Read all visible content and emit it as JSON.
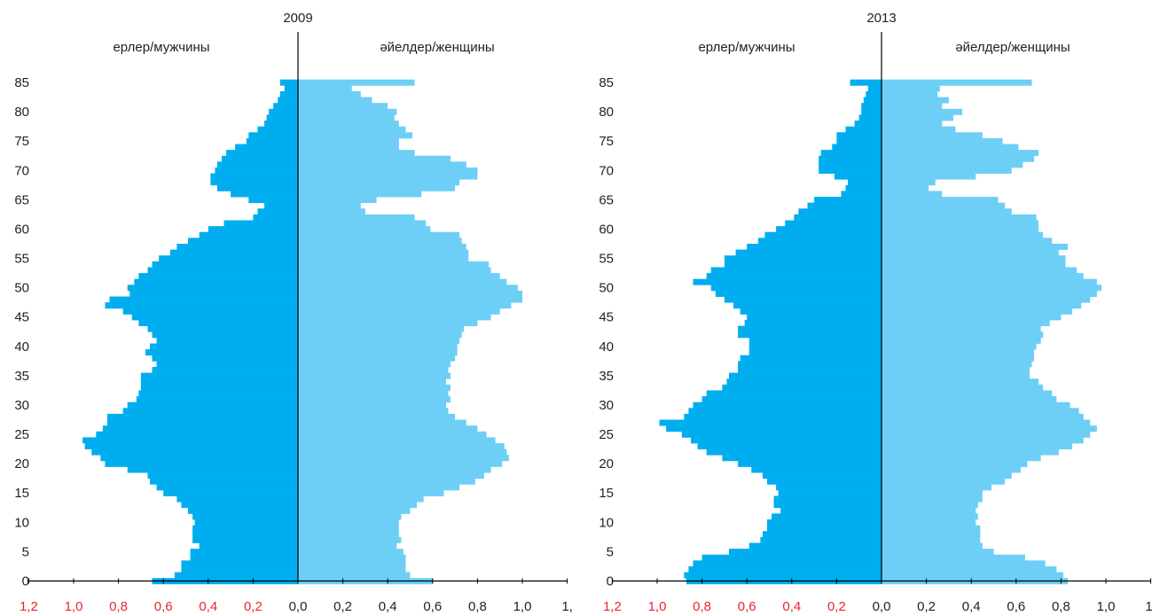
{
  "colors": {
    "male": "#00aeef",
    "female": "#6dcff6",
    "axis": "#000000",
    "left_tick_labels": "#e8272c",
    "right_tick_labels": "#231f20"
  },
  "chart_data": [
    {
      "type": "bar",
      "orientation": "horizontal-population-pyramid",
      "title": "2009",
      "series": [
        {
          "name": "ерлер/мужчины",
          "side": "left",
          "values": [
            0.65,
            0.55,
            0.52,
            0.52,
            0.48,
            0.48,
            0.44,
            0.47,
            0.47,
            0.47,
            0.46,
            0.47,
            0.49,
            0.52,
            0.54,
            0.6,
            0.63,
            0.66,
            0.67,
            0.76,
            0.86,
            0.88,
            0.92,
            0.95,
            0.96,
            0.9,
            0.87,
            0.85,
            0.85,
            0.78,
            0.76,
            0.72,
            0.71,
            0.7,
            0.7,
            0.7,
            0.65,
            0.63,
            0.65,
            0.68,
            0.66,
            0.63,
            0.65,
            0.67,
            0.71,
            0.74,
            0.78,
            0.86,
            0.84,
            0.75,
            0.76,
            0.73,
            0.71,
            0.67,
            0.65,
            0.62,
            0.57,
            0.54,
            0.49,
            0.44,
            0.4,
            0.33,
            0.2,
            0.18,
            0.15,
            0.22,
            0.3,
            0.36,
            0.39,
            0.39,
            0.37,
            0.36,
            0.34,
            0.32,
            0.28,
            0.23,
            0.22,
            0.18,
            0.15,
            0.14,
            0.13,
            0.11,
            0.09,
            0.08,
            0.06,
            0.08
          ]
        },
        {
          "name": "әйелдер/женщины",
          "side": "right",
          "values": [
            0.6,
            0.5,
            0.48,
            0.48,
            0.48,
            0.47,
            0.44,
            0.46,
            0.45,
            0.45,
            0.45,
            0.46,
            0.5,
            0.53,
            0.56,
            0.65,
            0.72,
            0.79,
            0.83,
            0.86,
            0.91,
            0.94,
            0.93,
            0.92,
            0.88,
            0.84,
            0.8,
            0.75,
            0.7,
            0.67,
            0.66,
            0.68,
            0.67,
            0.68,
            0.66,
            0.68,
            0.67,
            0.68,
            0.7,
            0.71,
            0.71,
            0.72,
            0.73,
            0.74,
            0.8,
            0.86,
            0.9,
            0.95,
            1.0,
            1.0,
            0.98,
            0.93,
            0.9,
            0.86,
            0.85,
            0.76,
            0.76,
            0.75,
            0.73,
            0.72,
            0.59,
            0.57,
            0.52,
            0.3,
            0.28,
            0.35,
            0.55,
            0.7,
            0.72,
            0.8,
            0.8,
            0.75,
            0.68,
            0.52,
            0.45,
            0.45,
            0.51,
            0.48,
            0.45,
            0.43,
            0.44,
            0.4,
            0.33,
            0.28,
            0.24,
            0.52
          ]
        }
      ],
      "y": {
        "label": "",
        "min": 0,
        "max": 85,
        "ticks": [
          "0",
          "5",
          "10",
          "15",
          "20",
          "25",
          "30",
          "35",
          "40",
          "45",
          "50",
          "55",
          "60",
          "65",
          "70",
          "75",
          "80",
          "85"
        ]
      },
      "x_left_ticks": [
        "1,2",
        "1,0",
        "0,8",
        "0,6",
        "0,4",
        "0,2"
      ],
      "x_right_ticks": [
        "0,0",
        "0,2",
        "0,4",
        "0,6",
        "0,8",
        "1,0",
        "1,"
      ]
    },
    {
      "type": "bar",
      "orientation": "horizontal-population-pyramid",
      "title": "2013",
      "series": [
        {
          "name": "ерлер/мужчины",
          "side": "left",
          "values": [
            0.87,
            0.88,
            0.86,
            0.84,
            0.8,
            0.68,
            0.59,
            0.54,
            0.53,
            0.51,
            0.51,
            0.49,
            0.45,
            0.48,
            0.48,
            0.46,
            0.47,
            0.51,
            0.53,
            0.58,
            0.64,
            0.71,
            0.78,
            0.82,
            0.85,
            0.89,
            0.96,
            0.99,
            0.88,
            0.86,
            0.84,
            0.8,
            0.78,
            0.71,
            0.69,
            0.68,
            0.64,
            0.64,
            0.63,
            0.59,
            0.59,
            0.59,
            0.64,
            0.64,
            0.61,
            0.6,
            0.63,
            0.66,
            0.7,
            0.74,
            0.76,
            0.84,
            0.78,
            0.76,
            0.7,
            0.7,
            0.65,
            0.6,
            0.55,
            0.52,
            0.47,
            0.43,
            0.39,
            0.37,
            0.33,
            0.3,
            0.18,
            0.16,
            0.15,
            0.21,
            0.28,
            0.28,
            0.28,
            0.27,
            0.22,
            0.2,
            0.2,
            0.16,
            0.12,
            0.1,
            0.09,
            0.09,
            0.08,
            0.07,
            0.06,
            0.14
          ]
        },
        {
          "name": "әйелдер/женщины",
          "side": "right",
          "values": [
            0.83,
            0.81,
            0.78,
            0.73,
            0.64,
            0.5,
            0.45,
            0.44,
            0.44,
            0.44,
            0.42,
            0.43,
            0.42,
            0.43,
            0.45,
            0.45,
            0.49,
            0.55,
            0.58,
            0.62,
            0.65,
            0.71,
            0.79,
            0.85,
            0.9,
            0.93,
            0.96,
            0.93,
            0.9,
            0.88,
            0.84,
            0.78,
            0.76,
            0.72,
            0.7,
            0.66,
            0.66,
            0.67,
            0.68,
            0.68,
            0.69,
            0.71,
            0.72,
            0.71,
            0.75,
            0.8,
            0.85,
            0.89,
            0.93,
            0.96,
            0.98,
            0.96,
            0.9,
            0.87,
            0.82,
            0.82,
            0.79,
            0.83,
            0.76,
            0.72,
            0.7,
            0.7,
            0.69,
            0.58,
            0.55,
            0.52,
            0.27,
            0.21,
            0.24,
            0.42,
            0.58,
            0.63,
            0.68,
            0.7,
            0.61,
            0.54,
            0.45,
            0.33,
            0.27,
            0.32,
            0.36,
            0.27,
            0.3,
            0.25,
            0.26,
            0.67
          ]
        }
      ],
      "y": {
        "label": "",
        "min": 0,
        "max": 85,
        "ticks": [
          "0",
          "5",
          "10",
          "15",
          "20",
          "25",
          "30",
          "35",
          "40",
          "45",
          "50",
          "55",
          "60",
          "65",
          "70",
          "75",
          "80",
          "85"
        ]
      },
      "x_left_ticks": [
        "1,2",
        "1,0",
        "0,8",
        "0,6",
        "0,4",
        "0,2"
      ],
      "x_right_ticks": [
        "0,0",
        "0,2",
        "0,4",
        "0,6",
        "0,8",
        "1,0",
        "1,"
      ]
    }
  ]
}
